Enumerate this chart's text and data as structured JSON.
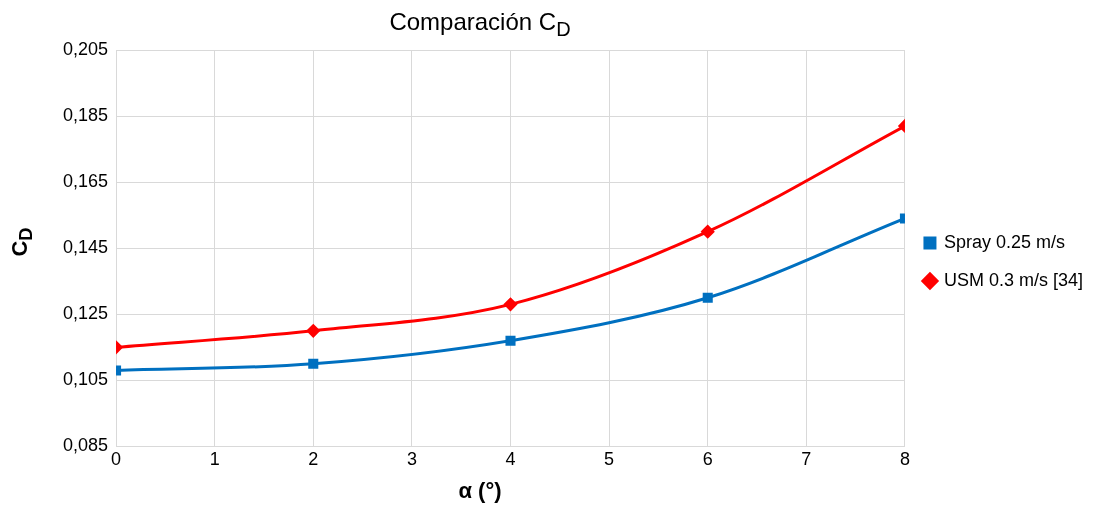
{
  "chart_data": {
    "type": "line",
    "title": "Comparación C$_{D}$",
    "xlabel": "α (°)",
    "ylabel": "C$_{D}$",
    "x": [
      0,
      2,
      4,
      6,
      8
    ],
    "series": [
      {
        "name": "Spray 0.25 m/s",
        "color": "#0070c0",
        "marker": "square",
        "values": [
          0.108,
          0.11,
          0.117,
          0.13,
          0.154
        ]
      },
      {
        "name": "USM 0.3 m/s [34]",
        "color": "#ff0000",
        "marker": "diamond",
        "values": [
          0.115,
          0.12,
          0.128,
          0.15,
          0.182
        ]
      }
    ],
    "xlim": [
      0,
      8
    ],
    "xticks": [
      0,
      1,
      2,
      3,
      4,
      5,
      6,
      7,
      8
    ],
    "ylim": [
      0.085,
      0.205
    ],
    "yticks": [
      {
        "value": 0.085,
        "label": "0,085"
      },
      {
        "value": 0.105,
        "label": "0,105"
      },
      {
        "value": 0.125,
        "label": "0,125"
      },
      {
        "value": 0.145,
        "label": "0,145"
      },
      {
        "value": 0.165,
        "label": "0,165"
      },
      {
        "value": 0.185,
        "label": "0,185"
      },
      {
        "value": 0.205,
        "label": "0,205"
      }
    ],
    "grid": true,
    "legend": "right",
    "line_style": "solid"
  }
}
